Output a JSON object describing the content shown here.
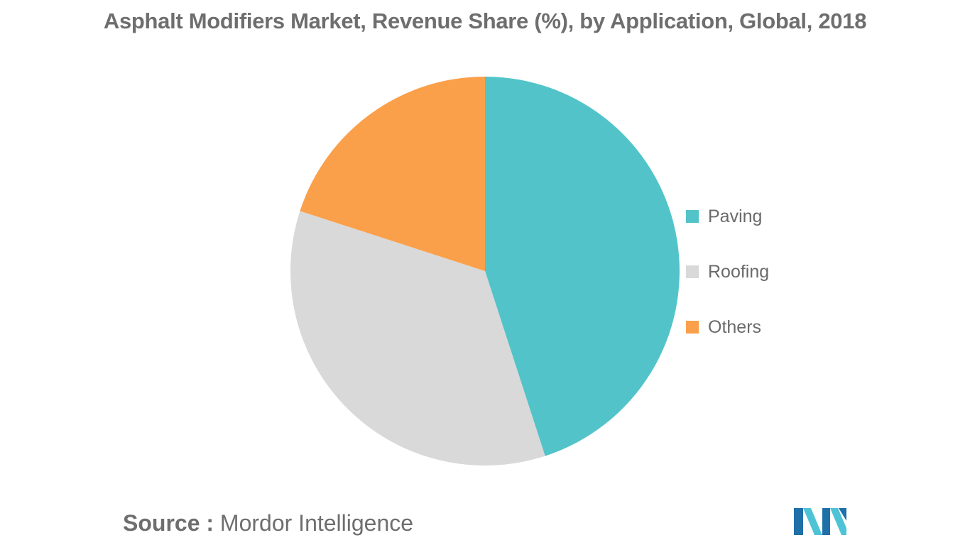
{
  "chart_data": {
    "type": "pie",
    "title": "Asphalt Modifiers Market, Revenue Share (%), by Application, Global, 2018",
    "slices": [
      {
        "label": "Paving",
        "value": 45,
        "color": "#52c4c9"
      },
      {
        "label": "Roofing",
        "value": 35,
        "color": "#d9d9d9"
      },
      {
        "label": "Others",
        "value": 20,
        "color": "#fba04a"
      }
    ],
    "start_angle_deg": 0,
    "direction": "clockwise",
    "legend_position": "right"
  },
  "source": {
    "key": "Source :",
    "value": "Mordor Intelligence"
  },
  "logo": {
    "icon": "mordor-intelligence-logo",
    "colors": [
      "#1f6fa8",
      "#4fc3d6"
    ]
  }
}
